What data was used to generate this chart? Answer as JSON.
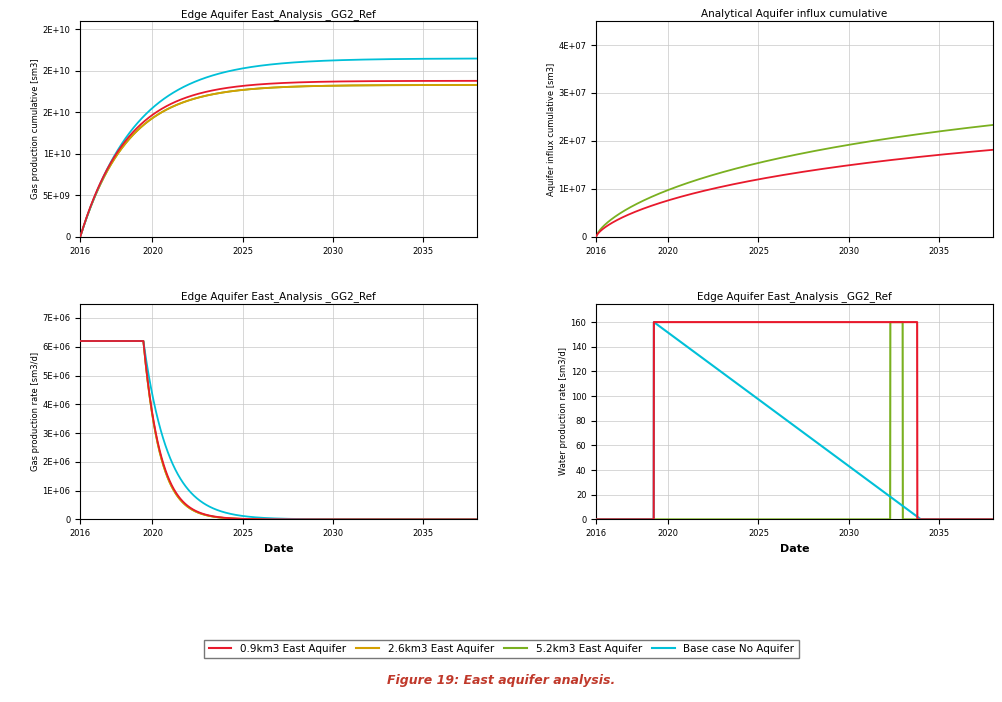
{
  "title_tl": "Edge Aquifer East_Analysis _GG2_Ref",
  "title_tr": "Analytical Aquifer influx cumulative",
  "title_bl": "Edge Aquifer East_Analysis _GG2_Ref",
  "title_br": "Edge Aquifer East_Analysis _GG2_Ref",
  "xlabel": "Date",
  "ylabel_tl": "Gas production cumulative [sm3]",
  "ylabel_tr": "Aquifer influx cumulative [sm3]",
  "ylabel_bl": "Gas production rate [sm3/d]",
  "ylabel_br": "Water production rate [sm3/d]",
  "xmin": 2016,
  "xmax": 2038,
  "colors": {
    "red": "#e8192c",
    "orange": "#d4a000",
    "green": "#7ab020",
    "cyan": "#00c0d8"
  },
  "legend_labels": [
    "0.9km3 East Aquifer",
    "2.6km3 East Aquifer",
    "5.2km3 East Aquifer",
    "Base case No Aquifer"
  ],
  "figure_caption": "Figure 19: East aquifer analysis.",
  "bg_color": "#ffffff",
  "grid_color": "#c8c8c8"
}
